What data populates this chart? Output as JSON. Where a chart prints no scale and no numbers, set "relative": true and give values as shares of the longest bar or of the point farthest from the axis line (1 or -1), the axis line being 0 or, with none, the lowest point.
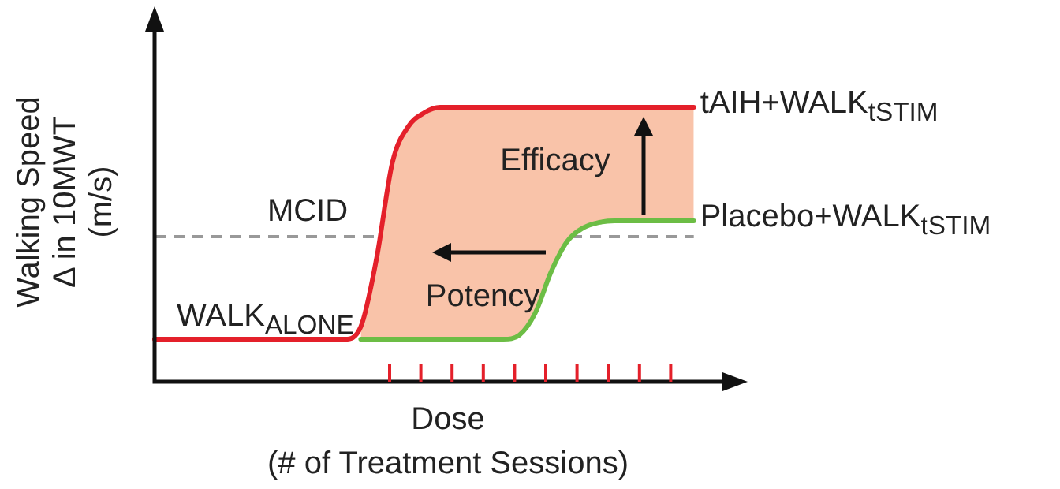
{
  "chart_data": {
    "type": "line",
    "relative": true,
    "xlabel": "Dose\n(# of Treatment Sessions)",
    "ylabel": "Walking Speed\nΔ in 10MWT\n(m/s)",
    "categories": [
      null,
      null,
      null,
      null,
      null,
      null,
      null,
      null,
      null,
      null,
      null,
      null,
      null,
      null,
      null,
      null,
      null,
      null,
      null,
      null,
      null,
      null,
      null,
      null,
      null,
      null,
      null,
      null,
      null,
      null,
      null,
      null,
      null,
      null,
      null,
      null,
      null,
      null
    ],
    "series": [
      {
        "type": "area",
        "color": "#f9c3a9",
        "values": [
          null,
          null,
          null,
          null,
          null,
          null,
          null,
          null,
          null,
          null,
          null,
          null,
          null,
          0.2,
          0.45,
          0.8,
          0.93,
          0.98,
          1,
          1,
          1,
          1,
          1,
          1,
          1,
          1,
          1,
          1,
          1,
          1,
          1,
          1,
          1,
          1,
          1,
          null,
          null,
          null
        ]
      },
      {
        "name": "tAIH+WALK$_{tSTIM}$",
        "color": "#e4202a",
        "values": [
          0.155,
          0.155,
          0.155,
          0.155,
          0.155,
          0.155,
          0.155,
          0.155,
          0.155,
          0.155,
          0.155,
          0.155,
          0.155,
          0.2,
          0.45,
          0.8,
          0.93,
          0.98,
          1,
          1,
          1,
          1,
          1,
          1,
          1,
          1,
          1,
          1,
          1,
          1,
          1,
          1,
          1,
          1,
          1,
          null,
          null,
          null
        ]
      },
      {
        "name": "Placebo+WALK$_{tSTIM}$",
        "color": "#6cbd45",
        "values": [
          null,
          null,
          null,
          null,
          null,
          null,
          null,
          null,
          null,
          null,
          null,
          null,
          null,
          0.155,
          0.155,
          0.155,
          0.155,
          0.155,
          0.155,
          0.155,
          0.155,
          0.155,
          0.155,
          0.17,
          0.25,
          0.4,
          0.51,
          0.56,
          0.58,
          0.586,
          0.586,
          0.586,
          0.586,
          0.586,
          0.586,
          null,
          null,
          null
        ]
      }
    ],
    "ref_lines": [
      {
        "axis": "y",
        "value": 0.529,
        "label": "MCID",
        "color": "#999999",
        "line_style": "dashed"
      }
    ],
    "annotations": [
      "Efficacy",
      "Potency",
      "WALK$_{ALONE}$"
    ],
    "marker": "none",
    "line_style": "solid"
  }
}
